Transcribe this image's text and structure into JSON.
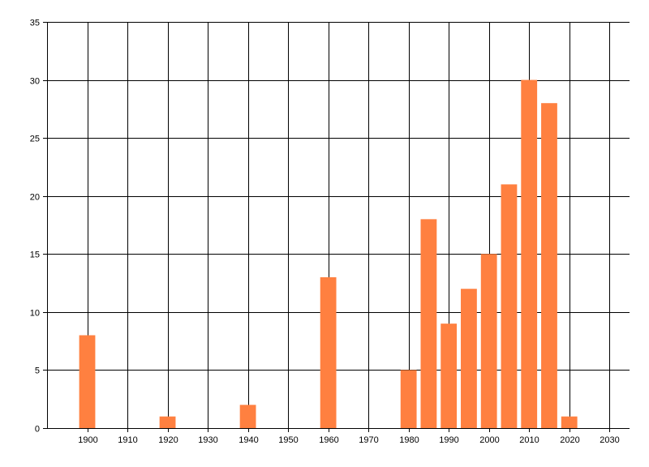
{
  "chart_data": {
    "type": "bar",
    "title": "",
    "xlabel": "",
    "ylabel": "",
    "x": [
      1900,
      1920,
      1940,
      1960,
      1980,
      1985,
      1990,
      1995,
      2000,
      2005,
      2010,
      2015,
      2020
    ],
    "values": [
      8,
      1,
      2,
      13,
      5,
      18,
      9,
      12,
      15,
      21,
      30,
      28,
      1
    ],
    "bar_width_years": 4,
    "xlim": [
      1890,
      2035
    ],
    "ylim": [
      0,
      35
    ],
    "x_ticks": [
      1900,
      1910,
      1920,
      1930,
      1940,
      1950,
      1960,
      1970,
      1980,
      1990,
      2000,
      2010,
      2020,
      2030
    ],
    "y_ticks": [
      0,
      5,
      10,
      15,
      20,
      25,
      30,
      35
    ],
    "grid": true,
    "legend": "none",
    "bar_color": "#ff8040",
    "grid_color": "#000000"
  }
}
